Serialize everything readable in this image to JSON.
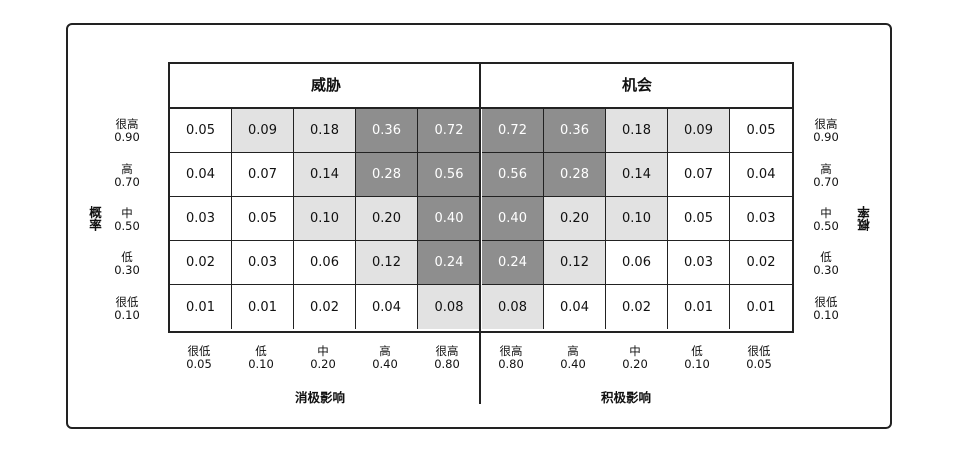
{
  "headers": {
    "threat": "威胁",
    "opportunity": "机会"
  },
  "axis": {
    "left_title": "概率",
    "right_title": "概率",
    "bottom_left_title": "消极影响",
    "bottom_right_title": "积极影响"
  },
  "probability_rows": [
    {
      "label": "很高",
      "value": "0.90"
    },
    {
      "label": "高",
      "value": "0.70"
    },
    {
      "label": "中",
      "value": "0.50"
    },
    {
      "label": "低",
      "value": "0.30"
    },
    {
      "label": "很低",
      "value": "0.10"
    }
  ],
  "impact_cols": [
    {
      "label": "很低",
      "value": "0.05"
    },
    {
      "label": "低",
      "value": "0.10"
    },
    {
      "label": "中",
      "value": "0.20"
    },
    {
      "label": "高",
      "value": "0.40"
    },
    {
      "label": "很高",
      "value": "0.80"
    },
    {
      "label": "很高",
      "value": "0.80"
    },
    {
      "label": "高",
      "value": "0.40"
    },
    {
      "label": "中",
      "value": "0.20"
    },
    {
      "label": "低",
      "value": "0.10"
    },
    {
      "label": "很低",
      "value": "0.05"
    }
  ],
  "grid": [
    [
      "0.05",
      "0.09",
      "0.18",
      "0.36",
      "0.72",
      "0.72",
      "0.36",
      "0.18",
      "0.09",
      "0.05"
    ],
    [
      "0.04",
      "0.07",
      "0.14",
      "0.28",
      "0.56",
      "0.56",
      "0.28",
      "0.14",
      "0.07",
      "0.04"
    ],
    [
      "0.03",
      "0.05",
      "0.10",
      "0.20",
      "0.40",
      "0.40",
      "0.20",
      "0.10",
      "0.05",
      "0.03"
    ],
    [
      "0.02",
      "0.03",
      "0.06",
      "0.12",
      "0.24",
      "0.24",
      "0.12",
      "0.06",
      "0.03",
      "0.02"
    ],
    [
      "0.01",
      "0.01",
      "0.02",
      "0.04",
      "0.08",
      "0.08",
      "0.04",
      "0.02",
      "0.01",
      "0.01"
    ]
  ],
  "shading": [
    [
      0,
      1,
      1,
      2,
      2,
      2,
      2,
      1,
      1,
      0
    ],
    [
      0,
      0,
      1,
      2,
      2,
      2,
      2,
      1,
      0,
      0
    ],
    [
      0,
      0,
      1,
      1,
      2,
      2,
      1,
      1,
      0,
      0
    ],
    [
      0,
      0,
      0,
      1,
      2,
      2,
      1,
      0,
      0,
      0
    ],
    [
      0,
      0,
      0,
      0,
      1,
      1,
      0,
      0,
      0,
      0
    ]
  ],
  "colors": {
    "low": "#ffffff",
    "medium": "#e2e2e2",
    "high": "#8e8e8e"
  }
}
